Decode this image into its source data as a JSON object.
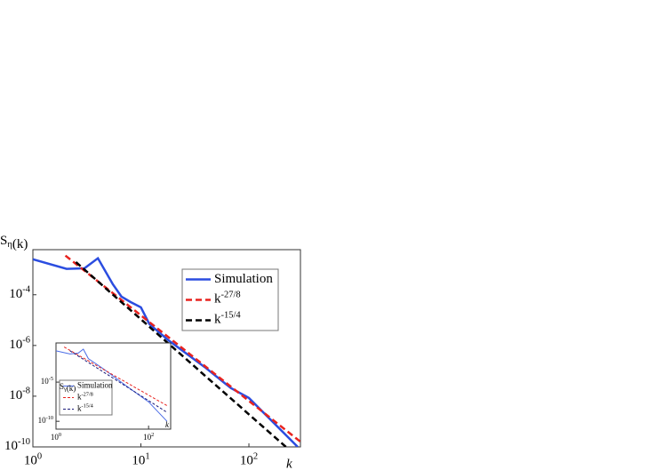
{
  "chart_data": [
    {
      "type": "line",
      "ylabel": "Sη(k)",
      "xlabel": "k",
      "log_x": true,
      "log_y": true,
      "legend": "upper right",
      "xlim": [
        1,
        300
      ],
      "ylim": [
        1e-10,
        0.006
      ],
      "xticks": [
        {
          "value": 1,
          "label": "100"
        },
        {
          "value": 10,
          "label": "101"
        },
        {
          "value": 100,
          "label": "102"
        }
      ],
      "yticks": [
        {
          "value": 1e-10,
          "label": "10-10"
        },
        {
          "value": 1e-08,
          "label": "10-8"
        },
        {
          "value": 1e-06,
          "label": "10-6"
        },
        {
          "value": 0.0001,
          "label": "10-4"
        }
      ],
      "series": [
        {
          "name": "Simulation",
          "color": "#2b4de0",
          "dashed": false,
          "x": [
            1,
            2.05,
            3,
            4,
            5.5,
            6.6,
            8,
            10,
            12,
            18,
            39,
            68,
            100,
            283
          ],
          "values": [
            0.0025,
            0.00105,
            0.0011,
            0.00275,
            0.00026,
            8.5e-05,
            5.2e-05,
            3.2e-05,
            6.9e-06,
            1.6e-06,
            1.4e-07,
            2.1e-08,
            8.5e-09,
            1e-10
          ]
        },
        {
          "name": "k-27/8",
          "color": "#e8231f",
          "dashed": true,
          "x": [
            2,
            300
          ],
          "values": [
            0.0035,
            1.6e-10
          ]
        },
        {
          "name": "k-15/4",
          "color": "#000000",
          "dashed": true,
          "x": [
            2.5,
            220
          ],
          "values": [
            0.00195,
            1e-10
          ]
        }
      ]
    },
    {
      "type": "line",
      "ylabel": "Sγ(k)",
      "xlabel": "k",
      "log_x": true,
      "log_y": true,
      "legend": "lower left",
      "xlim": [
        1,
        300
      ],
      "ylim": [
        1e-11,
        1
      ],
      "xticks": [
        {
          "value": 1,
          "label": "100"
        },
        {
          "value": 100,
          "label": "102"
        }
      ],
      "yticks": [
        {
          "value": 1e-10,
          "label": "10-10"
        },
        {
          "value": 1e-05,
          "label": "10-5"
        }
      ],
      "series": [
        {
          "name": "Simulation",
          "color": "#4a6be6",
          "dashed": false,
          "x": [
            1,
            2,
            3,
            3.9,
            5,
            10,
            30,
            100,
            250
          ],
          "values": [
            0.1,
            0.04,
            0.05,
            0.16,
            0.01,
            0.00063,
            5e-06,
            3e-08,
            1e-10
          ]
        },
        {
          "name": "k-27/8",
          "color": "#e8231f",
          "dashed": true,
          "x": [
            1.5,
            250
          ],
          "values": [
            0.3,
            1e-08
          ]
        },
        {
          "name": "k-15/4",
          "color": "#1a1a7a",
          "dashed": true,
          "x": [
            2,
            250
          ],
          "values": [
            0.1,
            1.4e-09
          ]
        }
      ]
    }
  ]
}
